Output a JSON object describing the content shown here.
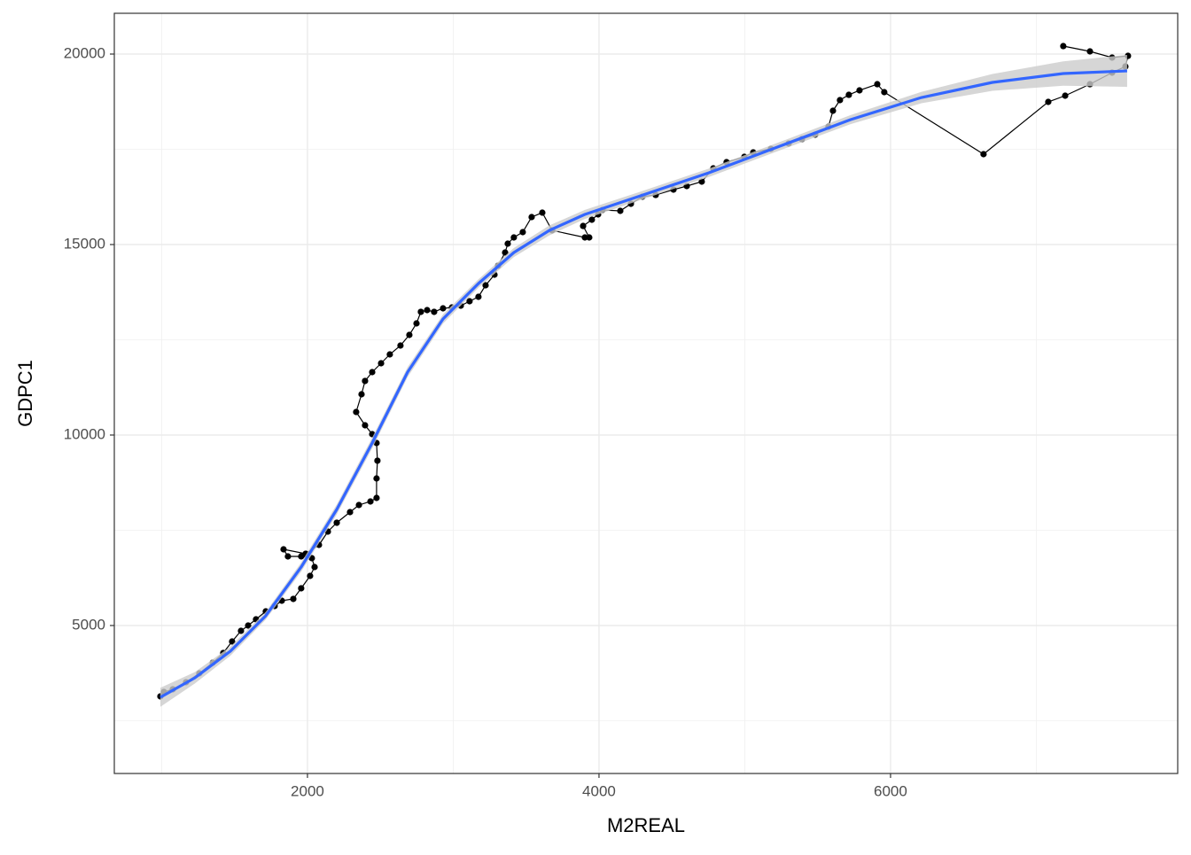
{
  "chart_data": {
    "type": "scatter",
    "x_label": "M2REAL",
    "y_label": "GDPC1",
    "xlim": [
      675,
      7970
    ],
    "xticks": [
      2000,
      4000,
      6000
    ],
    "ylim": [
      1116,
      21070
    ],
    "yticks": [
      5000,
      10000,
      15000,
      20000
    ],
    "grid": true,
    "series": [
      {
        "color": "#000000",
        "connect": true,
        "x": [
          991,
          1015,
          1076,
          1167,
          1258,
          1350,
          1422,
          1483,
          1544,
          1593,
          1647,
          1714,
          1775,
          1824,
          1903,
          1957,
          2018,
          2049,
          2030,
          1957,
          1866,
          1836,
          1988,
          2079,
          2140,
          2201,
          2292,
          2353,
          2432,
          2474,
          2474,
          2480,
          2474,
          2444,
          2395,
          2334,
          2371,
          2395,
          2444,
          2505,
          2565,
          2638,
          2699,
          2748,
          2778,
          2821,
          2869,
          2930,
          2991,
          3052,
          3112,
          3173,
          3222,
          3283,
          3307,
          3356,
          3374,
          3416,
          3477,
          3538,
          3611,
          3678,
          3903,
          3933,
          3891,
          3951,
          3994,
          4024,
          4146,
          4219,
          4298,
          4389,
          4511,
          4602,
          4705,
          4784,
          4875,
          4997,
          5058,
          5179,
          5301,
          5392,
          5483,
          5574,
          5605,
          5653,
          5714,
          5787,
          5909,
          5957,
          6638,
          7082,
          7198,
          7368,
          7520,
          7611,
          7629,
          7520,
          7368,
          7185
        ],
        "values": [
          3140,
          3256,
          3326,
          3512,
          3744,
          4023,
          4279,
          4581,
          4860,
          5000,
          5163,
          5372,
          5512,
          5651,
          5698,
          5977,
          6302,
          6535,
          6767,
          6814,
          6814,
          7000,
          6884,
          7116,
          7465,
          7698,
          7977,
          8163,
          8256,
          8349,
          8860,
          9326,
          9791,
          10023,
          10256,
          10605,
          11070,
          11419,
          11651,
          11884,
          12116,
          12349,
          12628,
          12930,
          13233,
          13279,
          13233,
          13326,
          13349,
          13395,
          13512,
          13628,
          13930,
          14209,
          14442,
          14791,
          15023,
          15186,
          15326,
          15721,
          15837,
          15372,
          15186,
          15186,
          15488,
          15651,
          15791,
          15907,
          15884,
          16070,
          16256,
          16302,
          16442,
          16535,
          16651,
          17000,
          17163,
          17302,
          17419,
          17512,
          17651,
          17767,
          17884,
          18093,
          18512,
          18791,
          18930,
          19047,
          19209,
          19000,
          17372,
          18744,
          18907,
          19209,
          19512,
          19674,
          19953,
          19907,
          20070,
          20209
        ]
      },
      {
        "color": "#3366ff",
        "band_color": "#cccccc",
        "smooth": true,
        "x": [
          991,
          1228,
          1471,
          1714,
          1957,
          2201,
          2444,
          2687,
          2930,
          3173,
          3416,
          3660,
          3903,
          4267,
          4754,
          5240,
          5726,
          6213,
          6699,
          7185,
          7623
        ],
        "values": [
          3116,
          3628,
          4326,
          5256,
          6535,
          8047,
          9791,
          11651,
          13047,
          13977,
          14791,
          15372,
          15791,
          16256,
          16884,
          17581,
          18279,
          18860,
          19256,
          19488,
          19558
        ],
        "ymin": [
          2866,
          3478,
          4206,
          5156,
          6415,
          7917,
          9651,
          11521,
          12927,
          13867,
          14671,
          15242,
          15671,
          16146,
          16774,
          17471,
          18159,
          18710,
          19036,
          19168,
          19138
        ],
        "ymax": [
          3366,
          3778,
          4446,
          5356,
          6655,
          8177,
          9931,
          11781,
          13167,
          14087,
          14911,
          15502,
          15911,
          16366,
          16994,
          17691,
          18399,
          19010,
          19476,
          19808,
          19978
        ]
      }
    ]
  }
}
